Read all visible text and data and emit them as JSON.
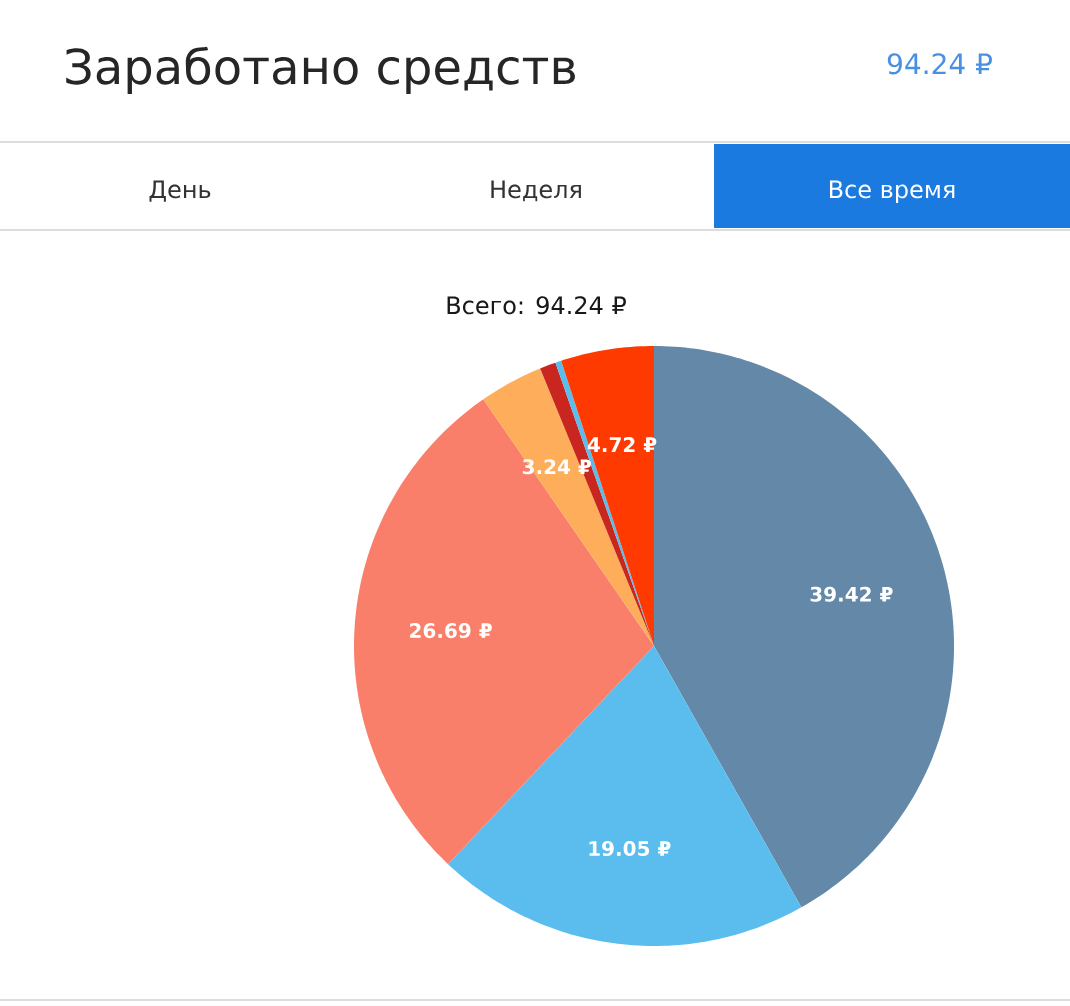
{
  "chart_data": {
    "type": "pie",
    "title": "Заработано средств",
    "annotations": [
      "94.24 ₽",
      "День",
      "Неделя",
      "Все время",
      "Всего:  94.24 ₽"
    ],
    "categories": [
      null,
      null,
      null,
      null,
      null,
      null,
      null
    ],
    "values": [
      39.42,
      19.05,
      26.69,
      3.24,
      0.82,
      0.3,
      4.72
    ],
    "colors": [
      "#6388a8",
      "#5bbdee",
      "#fa7f6a",
      "#feae5a",
      "#c8261e",
      "#5bbdee",
      "#ff3a00"
    ],
    "value_labels": [
      "39.42 ₽",
      "19.05 ₽",
      "26.69 ₽",
      "3.24 ₽",
      null,
      null,
      "4.72 ₽"
    ]
  }
}
